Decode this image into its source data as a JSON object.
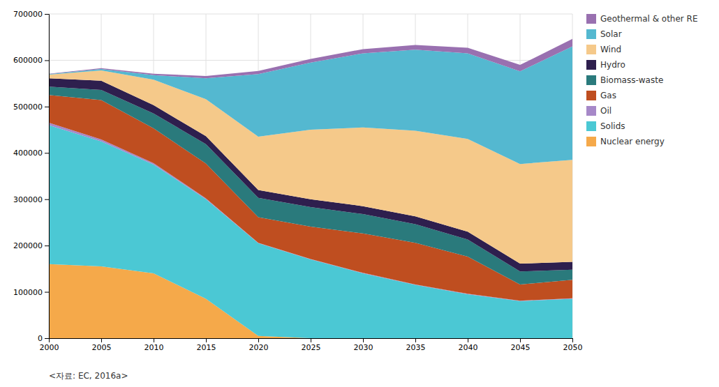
{
  "chart_data": {
    "type": "area",
    "stacked": true,
    "x": [
      2000,
      2005,
      2010,
      2015,
      2020,
      2025,
      2030,
      2035,
      2040,
      2045,
      2050
    ],
    "series": [
      {
        "name": "Nuclear energy",
        "color": "#F5A94A",
        "values": [
          160000,
          155000,
          140000,
          85000,
          5000,
          0,
          0,
          0,
          0,
          0,
          0
        ]
      },
      {
        "name": "Solids",
        "color": "#4BC8D4",
        "values": [
          300000,
          270000,
          235000,
          215000,
          200000,
          170000,
          140000,
          115000,
          95000,
          80000,
          85000
        ]
      },
      {
        "name": "Oil",
        "color": "#A688C8",
        "values": [
          5000,
          4000,
          3000,
          2000,
          1000,
          1000,
          1000,
          1000,
          1000,
          1000,
          1000
        ]
      },
      {
        "name": "Gas",
        "color": "#BF4E20",
        "values": [
          60000,
          85000,
          75000,
          75000,
          55000,
          70000,
          85000,
          90000,
          80000,
          35000,
          40000
        ]
      },
      {
        "name": "Biomass-waste",
        "color": "#2A7A7C",
        "values": [
          18000,
          22000,
          32000,
          42000,
          42000,
          42000,
          42000,
          40000,
          37000,
          28000,
          22000
        ]
      },
      {
        "name": "Hydro",
        "color": "#2E1F4E",
        "values": [
          18000,
          20000,
          18000,
          17000,
          17000,
          17000,
          17000,
          17000,
          17000,
          17000,
          17000
        ]
      },
      {
        "name": "Wind",
        "color": "#F5C98A",
        "values": [
          8000,
          22000,
          55000,
          80000,
          115000,
          150000,
          170000,
          185000,
          200000,
          215000,
          220000
        ]
      },
      {
        "name": "Solar",
        "color": "#54B8D0",
        "values": [
          1000,
          3000,
          10000,
          45000,
          135000,
          145000,
          160000,
          175000,
          185000,
          200000,
          245000
        ]
      },
      {
        "name": "Geothermal & other RE",
        "color": "#9970B0",
        "values": [
          1000,
          2000,
          3000,
          5000,
          7000,
          8000,
          9000,
          10000,
          12000,
          14000,
          16000
        ]
      }
    ],
    "xlim": [
      2000,
      2050
    ],
    "xticks": [
      2000,
      2005,
      2010,
      2015,
      2020,
      2025,
      2030,
      2035,
      2040,
      2045,
      2050
    ],
    "ylim": [
      0,
      700000
    ],
    "yticks": [
      0,
      100000,
      200000,
      300000,
      400000,
      500000,
      600000,
      700000
    ],
    "grid": true,
    "legend": "right",
    "caption": "<자료: EC, 2016a>"
  }
}
